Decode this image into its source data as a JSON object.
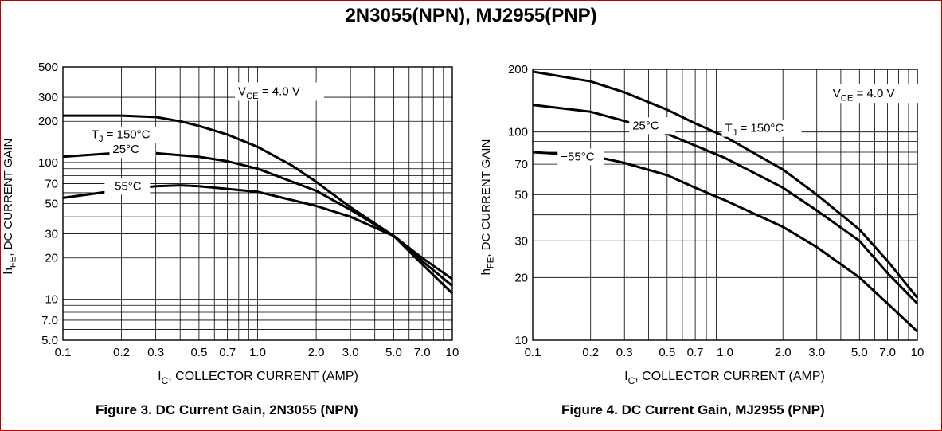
{
  "page_title": "2N3055(NPN), MJ2955(PNP)",
  "chart_data": [
    {
      "type": "line",
      "caption": "Figure 3. DC Current Gain, 2N3055 (NPN)",
      "xlabel_main": "I",
      "xlabel_sub": "C",
      "xlabel_rest": ", COLLECTOR CURRENT (AMP)",
      "ylabel_main": "h",
      "ylabel_sub": "FE",
      "ylabel_rest": ", DC CURRENT GAIN",
      "x_scale": "log",
      "y_scale": "log",
      "xlim": [
        0.1,
        10
      ],
      "ylim": [
        5,
        500
      ],
      "x_ticks": [
        0.1,
        0.2,
        0.3,
        0.5,
        0.7,
        1.0,
        2.0,
        3.0,
        5.0,
        7.0,
        10
      ],
      "x_tick_labels": [
        "0.1",
        "0.2",
        "0.3",
        "0.5",
        "0.7",
        "1.0",
        "2.0",
        "3.0",
        "5.0",
        "7.0",
        "10"
      ],
      "y_ticks": [
        5,
        7,
        10,
        20,
        30,
        50,
        70,
        100,
        200,
        300,
        500
      ],
      "y_tick_labels": [
        "5.0",
        "7.0",
        "10",
        "20",
        "30",
        "50",
        "70",
        "100",
        "200",
        "300",
        "500"
      ],
      "grid": true,
      "annotation_vce_main": "V",
      "annotation_vce_sub": "CE",
      "annotation_vce_rest": " = 4.0 V",
      "series": [
        {
          "name": "T_J = 150°C",
          "label_main": "T",
          "label_sub": "J",
          "label_rest": " = 150°C",
          "points": [
            [
              0.1,
              220
            ],
            [
              0.2,
              220
            ],
            [
              0.3,
              215
            ],
            [
              0.4,
              200
            ],
            [
              0.5,
              185
            ],
            [
              0.7,
              160
            ],
            [
              1.0,
              130
            ],
            [
              1.5,
              95
            ],
            [
              2.0,
              72
            ],
            [
              3.0,
              47
            ],
            [
              5.0,
              29
            ],
            [
              7.0,
              20
            ],
            [
              10,
              14
            ]
          ]
        },
        {
          "name": "25°C",
          "label_main": "25°C",
          "points": [
            [
              0.1,
              110
            ],
            [
              0.2,
              118
            ],
            [
              0.3,
              117
            ],
            [
              0.5,
              110
            ],
            [
              0.7,
              102
            ],
            [
              1.0,
              90
            ],
            [
              2.0,
              62
            ],
            [
              3.0,
              45
            ],
            [
              5.0,
              29
            ],
            [
              7.0,
              19
            ],
            [
              10,
              12.5
            ]
          ]
        },
        {
          "name": "−55°C",
          "label_main": "−55°C",
          "points": [
            [
              0.1,
              55
            ],
            [
              0.2,
              63
            ],
            [
              0.3,
              67
            ],
            [
              0.4,
              68
            ],
            [
              0.5,
              67
            ],
            [
              0.7,
              64
            ],
            [
              1.0,
              61
            ],
            [
              2.0,
              48
            ],
            [
              3.0,
              40
            ],
            [
              5.0,
              29
            ],
            [
              7.0,
              18
            ],
            [
              10,
              11
            ]
          ]
        }
      ]
    },
    {
      "type": "line",
      "caption": "Figure 4. DC Current Gain, MJ2955 (PNP)",
      "xlabel_main": "I",
      "xlabel_sub": "C",
      "xlabel_rest": ", COLLECTOR CURRENT (AMP)",
      "ylabel_main": "h",
      "ylabel_sub": "FE",
      "ylabel_rest": ", DC CURRENT GAIN",
      "x_scale": "log",
      "y_scale": "log",
      "xlim": [
        0.1,
        10
      ],
      "ylim": [
        10,
        200
      ],
      "x_ticks": [
        0.1,
        0.2,
        0.3,
        0.5,
        0.7,
        1.0,
        2.0,
        3.0,
        5.0,
        7.0,
        10
      ],
      "x_tick_labels": [
        "0.1",
        "0.2",
        "0.3",
        "0.5",
        "0.7",
        "1.0",
        "2.0",
        "3.0",
        "5.0",
        "7.0",
        "10"
      ],
      "y_ticks": [
        10,
        20,
        30,
        50,
        70,
        100,
        200
      ],
      "y_tick_labels": [
        "10",
        "20",
        "30",
        "50",
        "70",
        "100",
        "200"
      ],
      "grid": true,
      "annotation_vce_main": "V",
      "annotation_vce_sub": "CE",
      "annotation_vce_rest": " = 4.0 V",
      "series": [
        {
          "name": "T_J = 150°C",
          "label_main": "T",
          "label_sub": "J",
          "label_rest": " = 150°C",
          "points": [
            [
              0.1,
              195
            ],
            [
              0.2,
              175
            ],
            [
              0.3,
              155
            ],
            [
              0.5,
              128
            ],
            [
              0.7,
              110
            ],
            [
              1.0,
              95
            ],
            [
              2.0,
              66
            ],
            [
              3.0,
              50
            ],
            [
              5.0,
              34
            ],
            [
              7.0,
              24
            ],
            [
              10,
              16
            ]
          ]
        },
        {
          "name": "25°C",
          "label_main": "25°C",
          "points": [
            [
              0.1,
              135
            ],
            [
              0.2,
              125
            ],
            [
              0.3,
              113
            ],
            [
              0.5,
              98
            ],
            [
              0.7,
              86
            ],
            [
              1.0,
              75
            ],
            [
              2.0,
              54
            ],
            [
              3.0,
              42
            ],
            [
              5.0,
              30
            ],
            [
              7.0,
              21
            ],
            [
              10,
              15
            ]
          ]
        },
        {
          "name": "−55°C",
          "label_main": "−55°C",
          "points": [
            [
              0.1,
              80
            ],
            [
              0.2,
              77
            ],
            [
              0.3,
              71
            ],
            [
              0.5,
              62
            ],
            [
              0.7,
              54
            ],
            [
              1.0,
              47
            ],
            [
              2.0,
              35
            ],
            [
              3.0,
              28
            ],
            [
              5.0,
              20
            ],
            [
              7.0,
              15
            ],
            [
              10,
              11
            ]
          ]
        }
      ]
    }
  ]
}
